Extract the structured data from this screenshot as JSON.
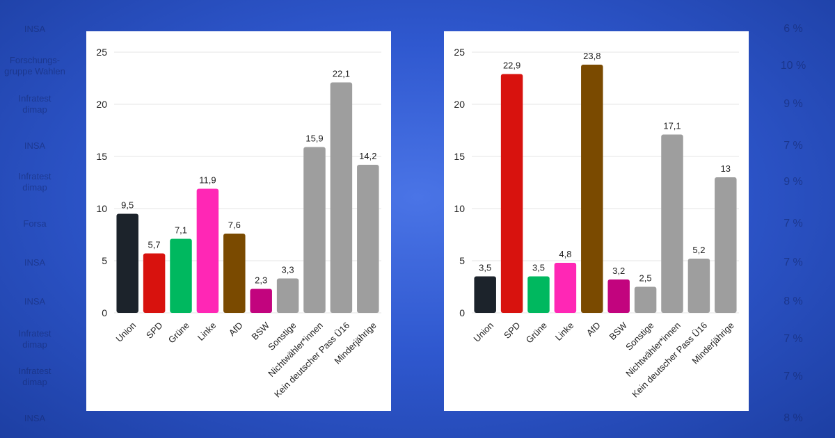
{
  "background": {
    "rows": [
      {
        "source": "INSA",
        "value": "6 %"
      },
      {
        "source": "Forschungs-\ngruppe Wahlen",
        "value": "10 %"
      },
      {
        "source": "Infratest\ndimap",
        "value": "9 %"
      },
      {
        "source": "INSA",
        "value": "7 %"
      },
      {
        "source": "Infratest\ndimap",
        "value": "9 %"
      },
      {
        "source": "Forsa",
        "value": "7 %"
      },
      {
        "source": "INSA",
        "value": "7 %"
      },
      {
        "source": "INSA",
        "value": "8 %"
      },
      {
        "source": "Infratest\ndimap",
        "value": "7 %"
      },
      {
        "source": "Infratest\ndimap",
        "value": "7 %"
      },
      {
        "source": "INSA",
        "value": "8 %"
      }
    ]
  },
  "chart_data": [
    {
      "type": "bar",
      "title": "",
      "categories": [
        "Union",
        "SPD",
        "Grüne",
        "Linke",
        "AfD",
        "BSW",
        "Sonstige",
        "Nichtwähler*innen",
        "Kein deutscher Pass Ü16",
        "Minderjährige"
      ],
      "values": [
        9.5,
        5.7,
        7.1,
        11.9,
        7.6,
        2.3,
        3.3,
        15.9,
        22.1,
        14.2
      ],
      "value_labels": [
        "9,5",
        "5,7",
        "7,1",
        "11,9",
        "7,6",
        "2,3",
        "3,3",
        "15,9",
        "22,1",
        "14,2"
      ],
      "colors": [
        "#1c232b",
        "#d8120e",
        "#00b85f",
        "#ff27b5",
        "#7a4a00",
        "#c2047e",
        "#9e9e9e",
        "#9e9e9e",
        "#9e9e9e",
        "#9e9e9e"
      ],
      "ylim": [
        0,
        25
      ],
      "yticks": [
        "0",
        "5",
        "10",
        "15",
        "20",
        "25"
      ],
      "grid": true
    },
    {
      "type": "bar",
      "title": "",
      "categories": [
        "Union",
        "SPD",
        "Grüne",
        "Linke",
        "AfD",
        "BSW",
        "Sonstige",
        "Nichtwähler*innen",
        "Kein deutscher Pass Ü16",
        "Minderjährige"
      ],
      "values": [
        3.5,
        22.9,
        3.5,
        4.8,
        23.8,
        3.2,
        2.5,
        17.1,
        5.2,
        13
      ],
      "value_labels": [
        "3,5",
        "22,9",
        "3,5",
        "4,8",
        "23,8",
        "3,2",
        "2,5",
        "17,1",
        "5,2",
        "13"
      ],
      "colors": [
        "#1c232b",
        "#d8120e",
        "#00b85f",
        "#ff27b5",
        "#7a4a00",
        "#c2047e",
        "#9e9e9e",
        "#9e9e9e",
        "#9e9e9e",
        "#9e9e9e"
      ],
      "ylim": [
        0,
        25
      ],
      "yticks": [
        "0",
        "5",
        "10",
        "15",
        "20",
        "25"
      ],
      "grid": true
    }
  ]
}
